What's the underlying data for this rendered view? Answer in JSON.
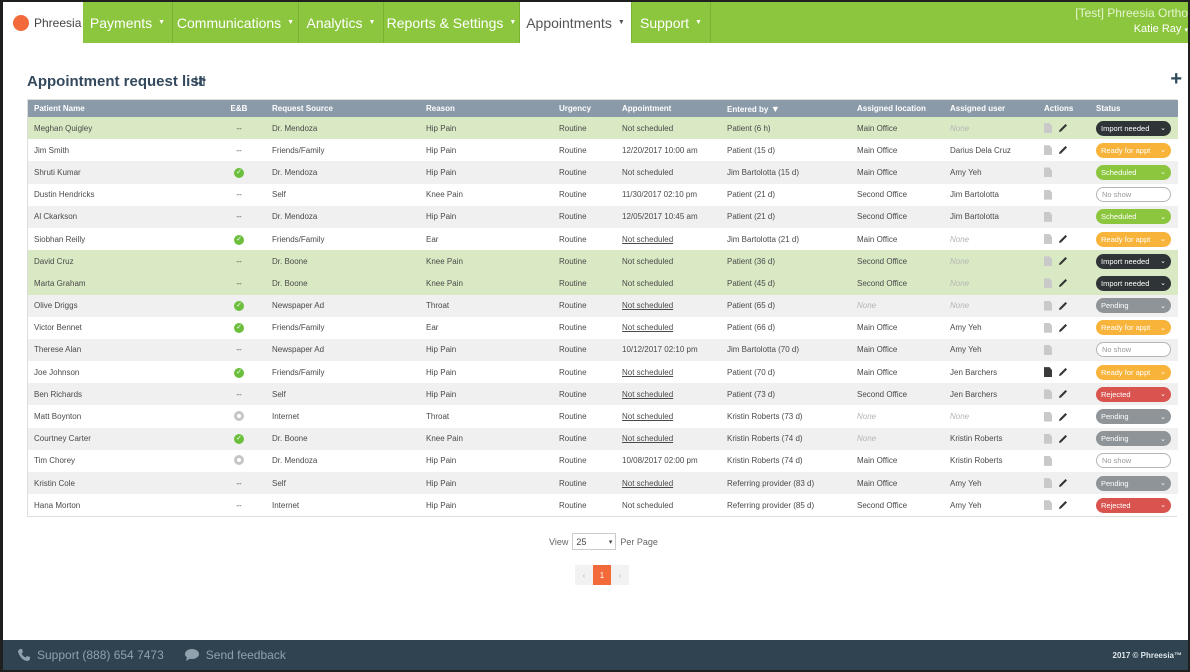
{
  "brand": {
    "name": "Phreesia",
    "logo_color": "#f26a3a"
  },
  "nav": [
    {
      "label": "Payments",
      "width": 90
    },
    {
      "label": "Communications",
      "width": 126
    },
    {
      "label": "Analytics",
      "width": 85
    },
    {
      "label": "Reports & Settings",
      "width": 136
    },
    {
      "label": "Appointments",
      "width": 112,
      "active": true
    },
    {
      "label": "Support",
      "width": 79
    }
  ],
  "user": {
    "practice": "[Test] Phreesia Ortho",
    "name": "Katie Ray"
  },
  "page": {
    "title": "Appointment request list",
    "add_label": "+"
  },
  "columns": [
    "Patient Name",
    "E&B",
    "Request Source",
    "Reason",
    "Urgency",
    "Appointment",
    "Entered by",
    "Assigned location",
    "Assigned user",
    "Actions",
    "Status"
  ],
  "rows": [
    {
      "name": "Meghan Quigley",
      "eb": "--",
      "source": "Dr. Mendoza",
      "reason": "Hip Pain",
      "urgency": "Routine",
      "appt": "Not scheduled",
      "appt_link": false,
      "entered": "Patient (6 h)",
      "location": "Main Office",
      "user": "None",
      "user_none": true,
      "doc": "light",
      "edit": true,
      "status": "Import needed",
      "status_type": "import",
      "hl": true
    },
    {
      "name": "Jim Smith",
      "eb": "--",
      "source": "Friends/Family",
      "reason": "Hip Pain",
      "urgency": "Routine",
      "appt": "12/20/2017 10:00 am",
      "appt_link": false,
      "entered": "Patient (15 d)",
      "location": "Main Office",
      "user": "Darius Dela Cruz",
      "doc": "light",
      "edit": true,
      "status": "Ready for appt",
      "status_type": "ready"
    },
    {
      "name": "Shruti Kumar",
      "eb": "check",
      "source": "Dr. Mendoza",
      "reason": "Hip Pain",
      "urgency": "Routine",
      "appt": "Not scheduled",
      "appt_link": false,
      "entered": "Jim Bartolotta (15 d)",
      "location": "Main Office",
      "user": "Amy Yeh",
      "doc": "light",
      "edit": false,
      "status": "Scheduled",
      "status_type": "sched"
    },
    {
      "name": "Dustin Hendricks",
      "eb": "--",
      "source": "Self",
      "reason": "Knee Pain",
      "urgency": "Routine",
      "appt": "11/30/2017 02:10 pm",
      "appt_link": false,
      "entered": "Patient (21 d)",
      "location": "Second Office",
      "user": "Jim Bartolotta",
      "doc": "light",
      "edit": false,
      "status": "No show",
      "status_type": "noshow"
    },
    {
      "name": "Al Ckarkson",
      "eb": "--",
      "source": "Dr. Mendoza",
      "reason": "Hip Pain",
      "urgency": "Routine",
      "appt": "12/05/2017 10:45 am",
      "appt_link": false,
      "entered": "Patient (21 d)",
      "location": "Second Office",
      "user": "Jim Bartolotta",
      "doc": "light",
      "edit": false,
      "status": "Scheduled",
      "status_type": "sched"
    },
    {
      "name": "Siobhan Reilly",
      "eb": "check",
      "source": "Friends/Family",
      "reason": "Ear",
      "urgency": "Routine",
      "appt": "Not scheduled",
      "appt_link": true,
      "entered": "Jim Bartolotta (21 d)",
      "location": "Main Office",
      "user": "None",
      "user_none": true,
      "doc": "light",
      "edit": true,
      "status": "Ready for appt",
      "status_type": "ready"
    },
    {
      "name": "David Cruz",
      "eb": "--",
      "source": "Dr. Boone",
      "reason": "Knee Pain",
      "urgency": "Routine",
      "appt": "Not scheduled",
      "appt_link": false,
      "entered": "Patient (36 d)",
      "location": "Second Office",
      "user": "None",
      "user_none": true,
      "doc": "light",
      "edit": true,
      "status": "Import needed",
      "status_type": "import",
      "hl": true
    },
    {
      "name": "Marta Graham",
      "eb": "--",
      "source": "Dr. Boone",
      "reason": "Knee Pain",
      "urgency": "Routine",
      "appt": "Not scheduled",
      "appt_link": false,
      "entered": "Patient (45 d)",
      "location": "Second Office",
      "user": "None",
      "user_none": true,
      "doc": "light",
      "edit": true,
      "status": "Import needed",
      "status_type": "import",
      "hl": true
    },
    {
      "name": "Olive Driggs",
      "eb": "check",
      "source": "Newspaper Ad",
      "reason": "Throat",
      "urgency": "Routine",
      "appt": "Not scheduled",
      "appt_link": true,
      "entered": "Patient (65 d)",
      "location": "None",
      "location_none": true,
      "user": "None",
      "user_none": true,
      "doc": "light",
      "edit": true,
      "status": "Pending",
      "status_type": "pending"
    },
    {
      "name": "Victor Bennet",
      "eb": "check",
      "source": "Friends/Family",
      "reason": "Ear",
      "urgency": "Routine",
      "appt": "Not scheduled",
      "appt_link": true,
      "entered": "Patient (66 d)",
      "location": "Main Office",
      "user": "Amy Yeh",
      "doc": "light",
      "edit": true,
      "status": "Ready for appt",
      "status_type": "ready"
    },
    {
      "name": "Therese Alan",
      "eb": "--",
      "source": "Newspaper Ad",
      "reason": "Hip Pain",
      "urgency": "Routine",
      "appt": "10/12/2017 02:10 pm",
      "appt_link": false,
      "entered": "Jim Bartolotta (70 d)",
      "location": "Main Office",
      "user": "Amy Yeh",
      "doc": "light",
      "edit": false,
      "status": "No show",
      "status_type": "noshow"
    },
    {
      "name": "Joe Johnson",
      "eb": "check",
      "source": "Friends/Family",
      "reason": "Hip Pain",
      "urgency": "Routine",
      "appt": "Not scheduled",
      "appt_link": true,
      "entered": "Patient (70 d)",
      "location": "Main Office",
      "user": "Jen Barchers",
      "doc": "dark",
      "edit": true,
      "status": "Ready for appt",
      "status_type": "ready"
    },
    {
      "name": "Ben Richards",
      "eb": "--",
      "source": "Self",
      "reason": "Hip Pain",
      "urgency": "Routine",
      "appt": "Not scheduled",
      "appt_link": true,
      "entered": "Patient (73 d)",
      "location": "Second Office",
      "user": "Jen Barchers",
      "doc": "light",
      "edit": true,
      "status": "Rejected",
      "status_type": "rejected"
    },
    {
      "name": "Matt Boynton",
      "eb": "grey",
      "source": "Internet",
      "reason": "Throat",
      "urgency": "Routine",
      "appt": "Not scheduled",
      "appt_link": true,
      "entered": "Kristin Roberts (73 d)",
      "location": "None",
      "location_none": true,
      "user": "None",
      "user_none": true,
      "doc": "light",
      "edit": true,
      "status": "Pending",
      "status_type": "pending"
    },
    {
      "name": "Courtney Carter",
      "eb": "check",
      "source": "Dr. Boone",
      "reason": "Knee Pain",
      "urgency": "Routine",
      "appt": "Not scheduled",
      "appt_link": true,
      "entered": "Kristin Roberts (74 d)",
      "location": "None",
      "location_none": true,
      "user": "Kristin Roberts",
      "doc": "light",
      "edit": true,
      "status": "Pending",
      "status_type": "pending"
    },
    {
      "name": "Tim Chorey",
      "eb": "grey",
      "source": "Dr. Mendoza",
      "reason": "Hip Pain",
      "urgency": "Routine",
      "appt": "10/08/2017 02:00 pm",
      "appt_link": false,
      "entered": "Kristin Roberts (74 d)",
      "location": "Main Office",
      "user": "Kristin Roberts",
      "doc": "light",
      "edit": false,
      "status": "No show",
      "status_type": "noshow"
    },
    {
      "name": "Kristin Cole",
      "eb": "--",
      "source": "Self",
      "reason": "Hip Pain",
      "urgency": "Routine",
      "appt": "Not scheduled",
      "appt_link": true,
      "entered": "Referring provider (83 d)",
      "location": "Main Office",
      "user": "Amy Yeh",
      "doc": "light",
      "edit": true,
      "status": "Pending",
      "status_type": "pending"
    },
    {
      "name": "Hana Morton",
      "eb": "--",
      "source": "Internet",
      "reason": "Hip Pain",
      "urgency": "Routine",
      "appt": "Not scheduled",
      "appt_link": false,
      "entered": "Referring provider (85 d)",
      "location": "Second Office",
      "user": "Amy Yeh",
      "doc": "light",
      "edit": true,
      "status": "Rejected",
      "status_type": "rejected"
    }
  ],
  "pagination": {
    "view_label": "View",
    "per_page_value": "25",
    "per_page_label": "Per Page",
    "prev": "‹",
    "current": "1",
    "next": "›"
  },
  "footer": {
    "support": "Support (888) 654 7473",
    "feedback": "Send feedback",
    "copyright": "2017 © Phreesia™"
  },
  "colors": {
    "nav_green": "#8cc63e",
    "header_grey": "#8b9aa9",
    "footer": "#2f4350",
    "highlight_row": "#d9e9c4"
  }
}
